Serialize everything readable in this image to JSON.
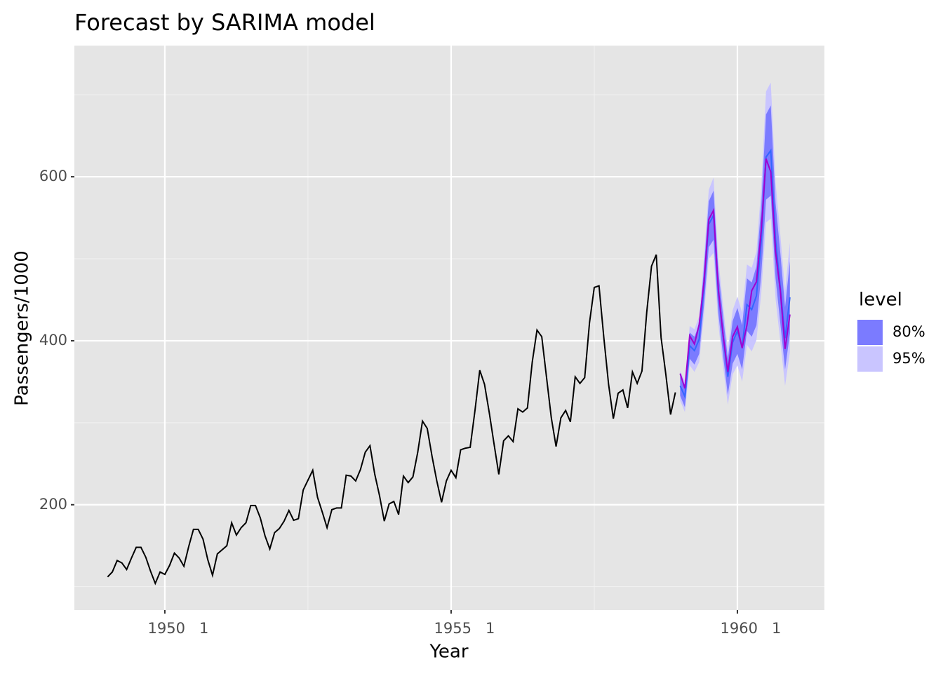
{
  "chart_data": {
    "type": "line",
    "title": "Forecast by SARIMA model",
    "x_label": "Year",
    "y_label": "Passengers/1000",
    "xlim": [
      1948.42,
      1961.52
    ],
    "ylim": [
      71.5,
      760
    ],
    "xticks": [
      {
        "value": 1950,
        "label": "1950   1"
      },
      {
        "value": 1955,
        "label": "1955   1"
      },
      {
        "value": 1960,
        "label": "1960   1"
      }
    ],
    "xminor": [
      1952.5,
      1957.5
    ],
    "yticks": [
      200,
      400,
      600
    ],
    "yminor": [
      100,
      300,
      500,
      700
    ],
    "grid": true,
    "legend_title": "level",
    "legend_position": "right",
    "series": [
      {
        "color": "#000000",
        "x": [
          1949.0,
          1949.083,
          1949.167,
          1949.25,
          1949.333,
          1949.417,
          1949.5,
          1949.583,
          1949.667,
          1949.75,
          1949.833,
          1949.917,
          1950.0,
          1950.083,
          1950.167,
          1950.25,
          1950.333,
          1950.417,
          1950.5,
          1950.583,
          1950.667,
          1950.75,
          1950.833,
          1950.917,
          1951.0,
          1951.083,
          1951.167,
          1951.25,
          1951.333,
          1951.417,
          1951.5,
          1951.583,
          1951.667,
          1951.75,
          1951.833,
          1951.917,
          1952.0,
          1952.083,
          1952.167,
          1952.25,
          1952.333,
          1952.417,
          1952.5,
          1952.583,
          1952.667,
          1952.75,
          1952.833,
          1952.917,
          1953.0,
          1953.083,
          1953.167,
          1953.25,
          1953.333,
          1953.417,
          1953.5,
          1953.583,
          1953.667,
          1953.75,
          1953.833,
          1953.917,
          1954.0,
          1954.083,
          1954.167,
          1954.25,
          1954.333,
          1954.417,
          1954.5,
          1954.583,
          1954.667,
          1954.75,
          1954.833,
          1954.917,
          1955.0,
          1955.083,
          1955.167,
          1955.25,
          1955.333,
          1955.417,
          1955.5,
          1955.583,
          1955.667,
          1955.75,
          1955.833,
          1955.917,
          1956.0,
          1956.083,
          1956.167,
          1956.25,
          1956.333,
          1956.417,
          1956.5,
          1956.583,
          1956.667,
          1956.75,
          1956.833,
          1956.917,
          1957.0,
          1957.083,
          1957.167,
          1957.25,
          1957.333,
          1957.417,
          1957.5,
          1957.583,
          1957.667,
          1957.75,
          1957.833,
          1957.917,
          1958.0,
          1958.083,
          1958.167,
          1958.25,
          1958.333,
          1958.417,
          1958.5,
          1958.583,
          1958.667,
          1958.75,
          1958.833,
          1958.917
        ],
        "values": [
          112,
          118,
          132,
          129,
          121,
          135,
          148,
          148,
          136,
          119,
          104,
          118,
          115,
          126,
          141,
          135,
          125,
          149,
          170,
          170,
          158,
          133,
          114,
          140,
          145,
          150,
          178,
          163,
          172,
          178,
          199,
          199,
          184,
          162,
          146,
          166,
          171,
          180,
          193,
          181,
          183,
          218,
          230,
          242,
          209,
          191,
          172,
          194,
          196,
          196,
          236,
          235,
          229,
          243,
          264,
          272,
          237,
          211,
          180,
          201,
          204,
          188,
          235,
          227,
          234,
          264,
          302,
          293,
          259,
          229,
          203,
          229,
          242,
          233,
          267,
          269,
          270,
          315,
          364,
          347,
          312,
          274,
          237,
          278,
          284,
          277,
          317,
          313,
          318,
          374,
          413,
          405,
          355,
          306,
          271,
          306,
          315,
          301,
          356,
          348,
          355,
          422,
          465,
          467,
          404,
          347,
          305,
          336,
          340,
          318,
          362,
          348,
          363,
          435,
          491,
          505,
          404,
          359,
          310,
          337
        ]
      },
      {
        "color": "#3366ff",
        "x": [
          1959.0,
          1959.083,
          1959.167,
          1959.25,
          1959.333,
          1959.417,
          1959.5,
          1959.583,
          1959.667,
          1959.75,
          1959.833,
          1959.917,
          1960.0,
          1960.083,
          1960.167,
          1960.25,
          1960.333,
          1960.417,
          1960.5,
          1960.583,
          1960.667,
          1960.75,
          1960.833,
          1960.917
        ],
        "values": [
          345,
          332,
          394,
          388,
          402,
          467,
          542,
          553,
          460,
          406,
          356,
          398,
          412,
          392,
          444,
          438,
          455,
          523,
          624,
          632,
          522,
          464,
          403,
          453
        ]
      },
      {
        "color": "#a000d0",
        "x": [
          1959.0,
          1959.083,
          1959.167,
          1959.25,
          1959.333,
          1959.417,
          1959.5,
          1959.583,
          1959.667,
          1959.75,
          1959.833,
          1959.917,
          1960.0,
          1960.083,
          1960.167,
          1960.25,
          1960.333,
          1960.417,
          1960.5,
          1960.583,
          1960.667,
          1960.75,
          1960.833,
          1960.917
        ],
        "values": [
          360,
          342,
          406,
          396,
          420,
          472,
          548,
          559,
          463,
          407,
          362,
          405,
          417,
          391,
          419,
          461,
          472,
          535,
          622,
          606,
          508,
          461,
          390,
          432
        ]
      }
    ],
    "bands": [
      {
        "name": "80%",
        "color": "#7b7bff",
        "lower": [
          333,
          319,
          378,
          371,
          384,
          444,
          514,
          523,
          434,
          382,
          334,
          372,
          384,
          365,
          412,
          405,
          419,
          481,
          572,
          577,
          476,
          421,
          365,
          409
        ],
        "upper": [
          357,
          345,
          410,
          405,
          420,
          490,
          570,
          583,
          486,
          430,
          378,
          424,
          440,
          419,
          476,
          471,
          491,
          565,
          676,
          687,
          568,
          507,
          441,
          497
        ]
      },
      {
        "name": "95%",
        "color": "#c9c5ff",
        "lower": [
          327,
          313,
          370,
          362,
          374,
          432,
          500,
          507,
          420,
          369,
          322,
          359,
          370,
          350,
          395,
          387,
          401,
          458,
          544,
          549,
          451,
          399,
          345,
          386
        ],
        "upper": [
          363,
          351,
          418,
          414,
          430,
          502,
          584,
          599,
          500,
          443,
          390,
          437,
          454,
          434,
          493,
          489,
          509,
          588,
          704,
          715,
          593,
          529,
          461,
          520
        ]
      }
    ]
  }
}
